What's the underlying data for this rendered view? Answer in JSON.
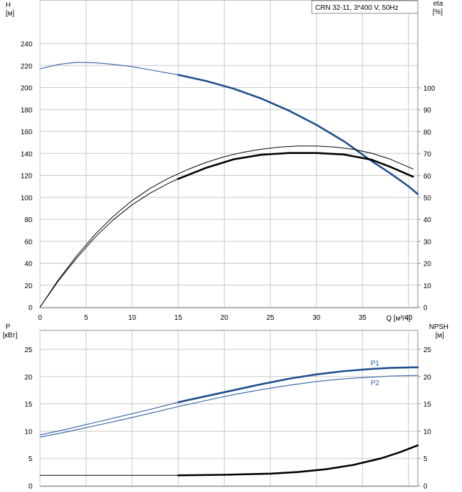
{
  "legend_box": "CRN 32-11, 3*400 V, 50Hz",
  "colors": {
    "blue": "#1f4e8c",
    "blue_light": "#2d5fa3",
    "grid": "#c8c8c8",
    "black": "#000000"
  },
  "chart_data": [
    {
      "type": "line",
      "y_left_label": [
        "H",
        "[м]"
      ],
      "y_right_label": [
        "eta",
        "[%]"
      ],
      "x_label": "Q [м³/ч]",
      "xlim": [
        0,
        41
      ],
      "x_ticks": [
        0,
        5,
        10,
        15,
        20,
        25,
        30,
        35,
        40
      ],
      "ylim": [
        0,
        260
      ],
      "y_ticks": [
        0,
        20,
        40,
        60,
        80,
        100,
        120,
        140,
        160,
        180,
        200,
        220,
        240
      ],
      "y2lim": [
        0,
        130
      ],
      "y2_ticks": [
        0,
        10,
        20,
        30,
        40,
        50,
        60,
        70,
        80,
        90,
        100
      ],
      "grid": true,
      "series": [
        {
          "axis": "left",
          "style": "thin-blue",
          "x": [
            0,
            2,
            4,
            6,
            8,
            10,
            12,
            14,
            15
          ],
          "y": [
            217,
            221,
            223,
            222.5,
            221,
            219,
            216,
            213,
            211.5
          ]
        },
        {
          "axis": "left",
          "style": "bold-blue",
          "x": [
            15,
            18,
            21,
            24,
            27,
            30,
            33,
            36,
            38,
            40,
            41
          ],
          "y": [
            211.5,
            206,
            199,
            190,
            179,
            166,
            151,
            133,
            122,
            110,
            103
          ]
        },
        {
          "axis": "right",
          "style": "thin-black",
          "x": [
            0,
            2,
            4,
            6,
            8,
            10,
            12,
            14,
            16,
            18,
            20,
            22,
            24,
            26,
            28,
            30,
            32,
            34,
            36,
            38,
            40.5
          ],
          "y": [
            0,
            12.5,
            23.5,
            33.3,
            41.6,
            48.6,
            54.3,
            58.9,
            62.7,
            66,
            68.6,
            70.6,
            72,
            73,
            73.5,
            73.5,
            73,
            72,
            70.2,
            67.5,
            63
          ]
        },
        {
          "axis": "right",
          "style": "thin-black",
          "x": [
            0,
            2,
            4,
            6,
            8,
            10,
            12,
            14,
            15
          ],
          "y": [
            0,
            12,
            22.5,
            32,
            40,
            46.7,
            52.1,
            56.6,
            58.5
          ]
        },
        {
          "axis": "right",
          "style": "bold-black",
          "x": [
            15,
            18,
            21,
            24,
            27,
            30,
            33,
            36,
            38,
            40.5
          ],
          "y": [
            58.5,
            63.5,
            67.4,
            69.5,
            70.3,
            70.3,
            69.6,
            67.2,
            64,
            59.5
          ]
        }
      ]
    },
    {
      "type": "line",
      "y_left_label": [
        "P",
        "[кВт]"
      ],
      "y_right_label": [
        "NPSH",
        "[м]"
      ],
      "xlim": [
        0,
        41
      ],
      "x_ticks": [
        0,
        5,
        10,
        15,
        20,
        25,
        30,
        35,
        40
      ],
      "ylim": [
        0,
        28
      ],
      "y_ticks": [
        0,
        5,
        10,
        15,
        20,
        25
      ],
      "y2_ticks": [
        0,
        5,
        10,
        15,
        20,
        25
      ],
      "grid": true,
      "series": [
        {
          "name": "P1",
          "axis": "left",
          "style": "thin-blue",
          "x": [
            0,
            3,
            6,
            9,
            12,
            15
          ],
          "y": [
            9.3,
            10.4,
            11.6,
            12.8,
            14,
            15.3
          ]
        },
        {
          "name": "P1",
          "axis": "left",
          "style": "bold-blue",
          "x": [
            15,
            18,
            21,
            24,
            27,
            30,
            33,
            36,
            38,
            41
          ],
          "y": [
            15.3,
            16.4,
            17.5,
            18.6,
            19.6,
            20.4,
            21,
            21.4,
            21.6,
            21.7
          ]
        },
        {
          "name": "P2",
          "axis": "left",
          "style": "thin-blue2",
          "x": [
            0,
            3,
            6,
            9,
            12,
            15,
            18,
            21,
            24,
            27,
            30,
            33,
            36,
            38,
            41
          ],
          "y": [
            8.9,
            9.9,
            11,
            12.1,
            13.3,
            14.5,
            15.6,
            16.7,
            17.6,
            18.4,
            19.1,
            19.6,
            19.9,
            20.1,
            20.2
          ]
        },
        {
          "axis": "right",
          "style": "thin-black",
          "x": [
            0,
            15
          ],
          "y": [
            1.9,
            1.9
          ]
        },
        {
          "axis": "right",
          "style": "bold-black",
          "x": [
            15,
            20,
            25,
            28,
            31,
            34,
            37,
            39,
            41
          ],
          "y": [
            1.9,
            2,
            2.2,
            2.5,
            3,
            3.8,
            5,
            6.1,
            7.4
          ]
        }
      ],
      "labels": [
        "P1",
        "P2"
      ]
    }
  ]
}
